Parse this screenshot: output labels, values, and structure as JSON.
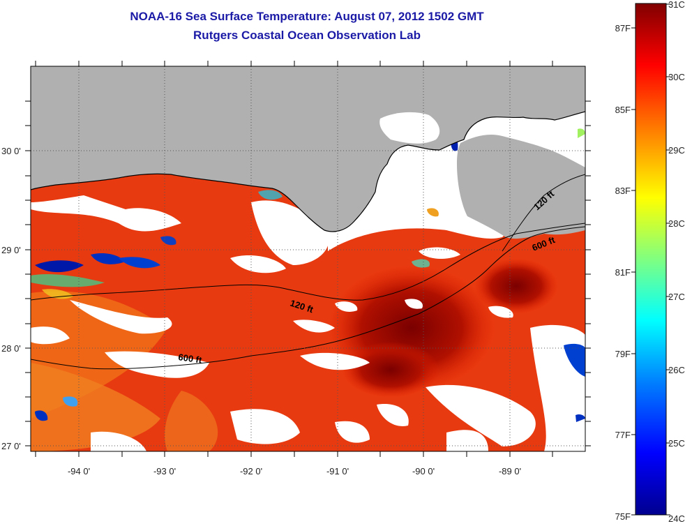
{
  "title_line1": "NOAA-16 Sea Surface Temperature:  August 07, 2012 1502 GMT",
  "title_line2": "Rutgers Coastal Ocean Observation Lab",
  "map": {
    "lat_labels": [
      "30 0'",
      "29 0'",
      "28 0'",
      "27 0'"
    ],
    "lon_labels": [
      "-94 0'",
      "-93 0'",
      "-92 0'",
      "-91 0'",
      "-90 0'",
      "-89 0'"
    ],
    "isobaths": [
      {
        "label": "120 ft",
        "color": "#000000"
      },
      {
        "label": "600 ft",
        "color": "#000000"
      }
    ],
    "land_color": "#b0b0b0",
    "cloud_color": "#ffffff"
  },
  "colorbar": {
    "celsius": [
      "31C",
      "30C",
      "29C",
      "28C",
      "27C",
      "26C",
      "25C",
      "24C"
    ],
    "fahrenheit": [
      "87F",
      "85F",
      "83F",
      "81F",
      "79F",
      "77F",
      "75F"
    ],
    "colors": [
      "#00008f",
      "#0000ff",
      "#0080ff",
      "#00ffff",
      "#80ff80",
      "#ffff00",
      "#ff8000",
      "#ff0000",
      "#800000"
    ]
  }
}
